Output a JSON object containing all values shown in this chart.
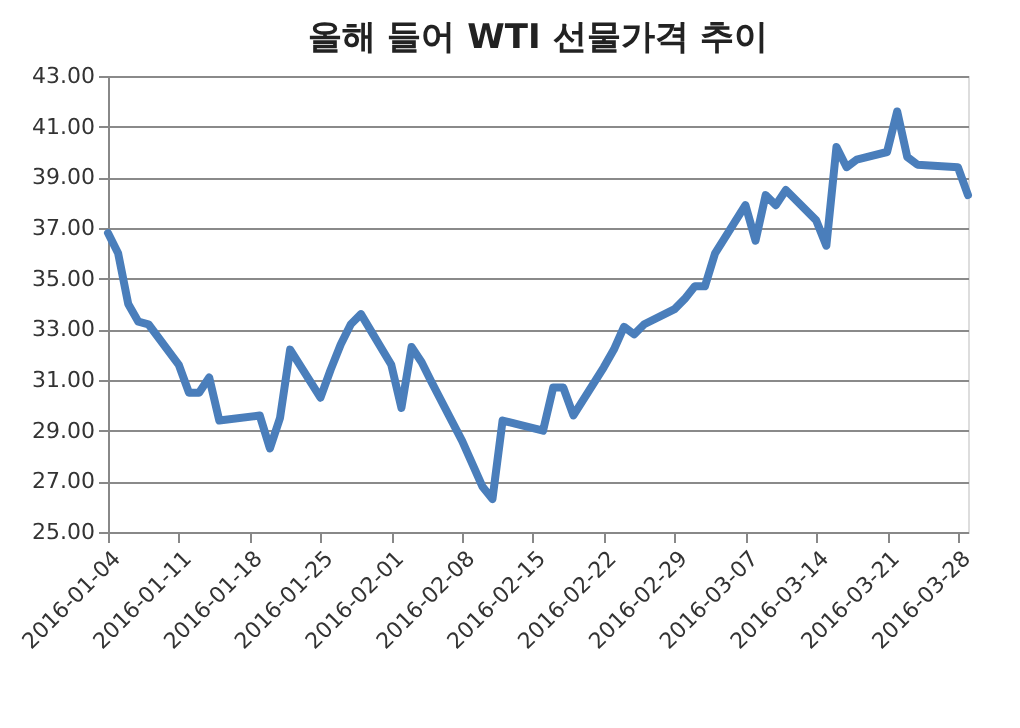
{
  "chart_data": {
    "type": "line",
    "title": "올해 들어 WTI 선물가격 추이",
    "x": [
      "2016-01-04",
      "2016-01-05",
      "2016-01-06",
      "2016-01-07",
      "2016-01-08",
      "2016-01-11",
      "2016-01-12",
      "2016-01-13",
      "2016-01-14",
      "2016-01-15",
      "2016-01-19",
      "2016-01-20",
      "2016-01-21",
      "2016-01-22",
      "2016-01-25",
      "2016-01-26",
      "2016-01-27",
      "2016-01-28",
      "2016-01-29",
      "2016-02-01",
      "2016-02-02",
      "2016-02-03",
      "2016-02-04",
      "2016-02-05",
      "2016-02-08",
      "2016-02-09",
      "2016-02-10",
      "2016-02-11",
      "2016-02-12",
      "2016-02-16",
      "2016-02-17",
      "2016-02-18",
      "2016-02-19",
      "2016-02-22",
      "2016-02-23",
      "2016-02-24",
      "2016-02-25",
      "2016-02-26",
      "2016-02-29",
      "2016-03-01",
      "2016-03-02",
      "2016-03-03",
      "2016-03-04",
      "2016-03-07",
      "2016-03-08",
      "2016-03-09",
      "2016-03-10",
      "2016-03-11",
      "2016-03-14",
      "2016-03-15",
      "2016-03-16",
      "2016-03-17",
      "2016-03-18",
      "2016-03-21",
      "2016-03-22",
      "2016-03-23",
      "2016-03-24",
      "2016-03-28",
      "2016-03-29"
    ],
    "series": [
      {
        "color": "#4a7ebb",
        "values": [
          36.8,
          36.0,
          34.0,
          33.3,
          33.2,
          31.6,
          30.5,
          30.5,
          31.1,
          29.4,
          29.6,
          28.3,
          29.5,
          32.2,
          30.3,
          31.4,
          32.4,
          33.2,
          33.6,
          31.6,
          29.9,
          32.3,
          31.7,
          30.9,
          28.6,
          27.7,
          26.8,
          26.3,
          29.4,
          29.0,
          30.7,
          30.7,
          29.6,
          31.5,
          32.2,
          33.1,
          32.8,
          33.2,
          33.8,
          34.2,
          34.7,
          34.7,
          36.0,
          37.9,
          36.5,
          38.3,
          37.9,
          38.5,
          37.3,
          36.3,
          40.2,
          39.4,
          39.7,
          40.0,
          41.6,
          39.8,
          39.5,
          39.4,
          38.3
        ]
      }
    ],
    "xlim": [
      "2016-01-04",
      "2016-03-29"
    ],
    "xticks": [
      "2016-01-04",
      "2016-01-11",
      "2016-01-18",
      "2016-01-25",
      "2016-02-01",
      "2016-02-08",
      "2016-02-15",
      "2016-02-22",
      "2016-02-29",
      "2016-03-07",
      "2016-03-14",
      "2016-03-21",
      "2016-03-28"
    ],
    "ylim": [
      25,
      43
    ],
    "yticks": [
      {
        "value": 25,
        "label": "25.00"
      },
      {
        "value": 27,
        "label": "27.00"
      },
      {
        "value": 29,
        "label": "29.00"
      },
      {
        "value": 31,
        "label": "31.00"
      },
      {
        "value": 33,
        "label": "33.00"
      },
      {
        "value": 35,
        "label": "35.00"
      },
      {
        "value": 37,
        "label": "37.00"
      },
      {
        "value": 39,
        "label": "39.00"
      },
      {
        "value": 41,
        "label": "41.00"
      },
      {
        "value": 43,
        "label": "43.00"
      }
    ],
    "grid": "y",
    "marker": "none",
    "line_style": "solid"
  }
}
